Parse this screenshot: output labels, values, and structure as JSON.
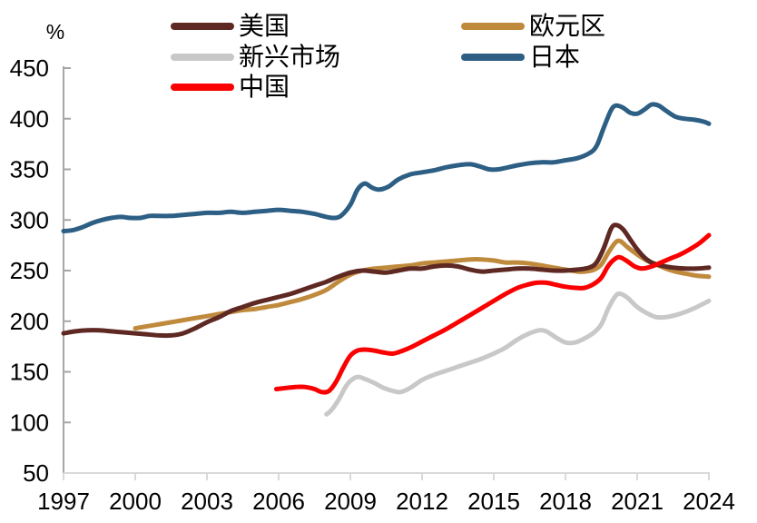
{
  "chart_data": {
    "type": "line",
    "title": "",
    "unit_label": "%",
    "xlabel": "",
    "ylabel": "%",
    "xlim": [
      1997,
      2024
    ],
    "ylim": [
      50,
      450
    ],
    "grid": false,
    "legend_position": "top",
    "x_ticks": [
      "1997",
      "2000",
      "2003",
      "2006",
      "2009",
      "2012",
      "2015",
      "2018",
      "2021",
      "2024"
    ],
    "y_ticks": [
      "450",
      "400",
      "350",
      "300",
      "250",
      "200",
      "150",
      "100",
      "50"
    ],
    "series": [
      {
        "id": "us",
        "name": "美国",
        "color": "#5E2823",
        "legend_col": 0,
        "legend_row": 0,
        "points": [
          [
            1997,
            188
          ],
          [
            1997.5,
            190
          ],
          [
            1998,
            191
          ],
          [
            1998.5,
            191
          ],
          [
            1999,
            190
          ],
          [
            1999.5,
            189
          ],
          [
            2000,
            188
          ],
          [
            2000.5,
            187
          ],
          [
            2001,
            186
          ],
          [
            2001.5,
            186
          ],
          [
            2002,
            188
          ],
          [
            2002.5,
            193
          ],
          [
            2003,
            199
          ],
          [
            2003.5,
            204
          ],
          [
            2004,
            210
          ],
          [
            2004.5,
            214
          ],
          [
            2005,
            218
          ],
          [
            2005.5,
            221
          ],
          [
            2006,
            224
          ],
          [
            2006.5,
            227
          ],
          [
            2007,
            231
          ],
          [
            2007.5,
            235
          ],
          [
            2008,
            239
          ],
          [
            2008.5,
            244
          ],
          [
            2009,
            248
          ],
          [
            2009.5,
            250
          ],
          [
            2010,
            249
          ],
          [
            2010.5,
            248
          ],
          [
            2011,
            250
          ],
          [
            2011.5,
            252
          ],
          [
            2012,
            252
          ],
          [
            2012.5,
            254
          ],
          [
            2013,
            255
          ],
          [
            2013.5,
            254
          ],
          [
            2014,
            251
          ],
          [
            2014.5,
            249
          ],
          [
            2015,
            250
          ],
          [
            2015.5,
            251
          ],
          [
            2016,
            252
          ],
          [
            2016.5,
            252
          ],
          [
            2017,
            251
          ],
          [
            2017.5,
            250
          ],
          [
            2018,
            250
          ],
          [
            2018.5,
            251
          ],
          [
            2019,
            253
          ],
          [
            2019.3,
            258
          ],
          [
            2019.6,
            272
          ],
          [
            2019.9,
            291
          ],
          [
            2020.1,
            295
          ],
          [
            2020.4,
            291
          ],
          [
            2020.7,
            281
          ],
          [
            2021,
            271
          ],
          [
            2021.3,
            263
          ],
          [
            2021.6,
            258
          ],
          [
            2022,
            255
          ],
          [
            2022.5,
            253
          ],
          [
            2023,
            252
          ],
          [
            2023.5,
            252
          ],
          [
            2024,
            253
          ]
        ]
      },
      {
        "id": "eurozone",
        "name": "欧元区",
        "color": "#C08A3D",
        "legend_col": 1,
        "legend_row": 0,
        "points": [
          [
            2000,
            193
          ],
          [
            2000.5,
            195
          ],
          [
            2001,
            197
          ],
          [
            2001.5,
            199
          ],
          [
            2002,
            201
          ],
          [
            2002.5,
            203
          ],
          [
            2003,
            205
          ],
          [
            2003.5,
            207
          ],
          [
            2004,
            209
          ],
          [
            2004.5,
            211
          ],
          [
            2005,
            212
          ],
          [
            2005.5,
            214
          ],
          [
            2006,
            216
          ],
          [
            2006.5,
            219
          ],
          [
            2007,
            222
          ],
          [
            2007.5,
            226
          ],
          [
            2008,
            231
          ],
          [
            2008.5,
            239
          ],
          [
            2009,
            246
          ],
          [
            2009.5,
            250
          ],
          [
            2010,
            252
          ],
          [
            2010.5,
            253
          ],
          [
            2011,
            254
          ],
          [
            2011.5,
            255
          ],
          [
            2012,
            257
          ],
          [
            2012.5,
            258
          ],
          [
            2013,
            259
          ],
          [
            2013.5,
            260
          ],
          [
            2014,
            261
          ],
          [
            2014.5,
            261
          ],
          [
            2015,
            260
          ],
          [
            2015.5,
            258
          ],
          [
            2016,
            258
          ],
          [
            2016.5,
            257
          ],
          [
            2017,
            255
          ],
          [
            2017.5,
            253
          ],
          [
            2018,
            251
          ],
          [
            2018.5,
            249
          ],
          [
            2018.8,
            249
          ],
          [
            2019.2,
            251
          ],
          [
            2019.5,
            256
          ],
          [
            2019.8,
            268
          ],
          [
            2020.1,
            278
          ],
          [
            2020.3,
            279
          ],
          [
            2020.6,
            273
          ],
          [
            2021,
            266
          ],
          [
            2021.4,
            260
          ],
          [
            2021.8,
            256
          ],
          [
            2022.2,
            252
          ],
          [
            2022.6,
            249
          ],
          [
            2023,
            247
          ],
          [
            2023.5,
            245
          ],
          [
            2024,
            244
          ]
        ]
      },
      {
        "id": "emerging",
        "name": "新兴市场",
        "color": "#C8C8C8",
        "legend_col": 0,
        "legend_row": 1,
        "points": [
          [
            2008,
            108
          ],
          [
            2008.2,
            112
          ],
          [
            2008.5,
            122
          ],
          [
            2008.8,
            135
          ],
          [
            2009,
            141
          ],
          [
            2009.3,
            145
          ],
          [
            2009.6,
            143
          ],
          [
            2010,
            139
          ],
          [
            2010.4,
            134
          ],
          [
            2010.8,
            131
          ],
          [
            2011.1,
            130
          ],
          [
            2011.5,
            134
          ],
          [
            2012,
            142
          ],
          [
            2012.5,
            147
          ],
          [
            2013,
            151
          ],
          [
            2013.5,
            155
          ],
          [
            2014,
            159
          ],
          [
            2014.5,
            163
          ],
          [
            2015,
            168
          ],
          [
            2015.5,
            174
          ],
          [
            2016,
            182
          ],
          [
            2016.5,
            188
          ],
          [
            2016.9,
            191
          ],
          [
            2017.2,
            190
          ],
          [
            2017.6,
            184
          ],
          [
            2018,
            179
          ],
          [
            2018.4,
            179
          ],
          [
            2018.8,
            183
          ],
          [
            2019.2,
            189
          ],
          [
            2019.5,
            197
          ],
          [
            2019.8,
            213
          ],
          [
            2020.1,
            225
          ],
          [
            2020.3,
            227
          ],
          [
            2020.6,
            223
          ],
          [
            2021,
            214
          ],
          [
            2021.4,
            208
          ],
          [
            2021.8,
            204
          ],
          [
            2022.2,
            204
          ],
          [
            2022.6,
            206
          ],
          [
            2023,
            209
          ],
          [
            2023.5,
            214
          ],
          [
            2024,
            220
          ]
        ]
      },
      {
        "id": "japan",
        "name": "日本",
        "color": "#2D5F85",
        "legend_col": 1,
        "legend_row": 1,
        "points": [
          [
            1997,
            289
          ],
          [
            1997.4,
            290
          ],
          [
            1997.8,
            293
          ],
          [
            1998.2,
            297
          ],
          [
            1998.6,
            300
          ],
          [
            1999,
            302
          ],
          [
            1999.4,
            303
          ],
          [
            1999.8,
            302
          ],
          [
            2000.2,
            302
          ],
          [
            2000.6,
            304
          ],
          [
            2001,
            304
          ],
          [
            2001.5,
            304
          ],
          [
            2002,
            305
          ],
          [
            2002.5,
            306
          ],
          [
            2003,
            307
          ],
          [
            2003.5,
            307
          ],
          [
            2004,
            308
          ],
          [
            2004.5,
            307
          ],
          [
            2005,
            308
          ],
          [
            2005.5,
            309
          ],
          [
            2006,
            310
          ],
          [
            2006.5,
            309
          ],
          [
            2007,
            308
          ],
          [
            2007.5,
            306
          ],
          [
            2008,
            303
          ],
          [
            2008.3,
            302
          ],
          [
            2008.6,
            304
          ],
          [
            2009,
            315
          ],
          [
            2009.3,
            330
          ],
          [
            2009.6,
            336
          ],
          [
            2009.9,
            332
          ],
          [
            2010.2,
            330
          ],
          [
            2010.6,
            333
          ],
          [
            2011,
            340
          ],
          [
            2011.5,
            345
          ],
          [
            2012,
            347
          ],
          [
            2012.5,
            349
          ],
          [
            2013,
            352
          ],
          [
            2013.5,
            354
          ],
          [
            2014,
            355
          ],
          [
            2014.4,
            353
          ],
          [
            2014.8,
            350
          ],
          [
            2015.2,
            350
          ],
          [
            2015.6,
            352
          ],
          [
            2016,
            354
          ],
          [
            2016.5,
            356
          ],
          [
            2017,
            357
          ],
          [
            2017.5,
            357
          ],
          [
            2018,
            359
          ],
          [
            2018.5,
            361
          ],
          [
            2019,
            366
          ],
          [
            2019.3,
            373
          ],
          [
            2019.6,
            391
          ],
          [
            2019.9,
            408
          ],
          [
            2020.1,
            413
          ],
          [
            2020.4,
            411
          ],
          [
            2020.7,
            406
          ],
          [
            2021,
            405
          ],
          [
            2021.3,
            409
          ],
          [
            2021.6,
            414
          ],
          [
            2021.9,
            413
          ],
          [
            2022.2,
            408
          ],
          [
            2022.6,
            402
          ],
          [
            2023,
            400
          ],
          [
            2023.4,
            399
          ],
          [
            2023.8,
            397
          ],
          [
            2024,
            395
          ]
        ]
      },
      {
        "id": "china",
        "name": "中国",
        "color": "#FA0000",
        "legend_col": 0,
        "legend_row": 2,
        "points": [
          [
            2005.9,
            133
          ],
          [
            2006.3,
            134
          ],
          [
            2006.7,
            135
          ],
          [
            2007.1,
            135
          ],
          [
            2007.5,
            133
          ],
          [
            2007.8,
            130
          ],
          [
            2008.1,
            131
          ],
          [
            2008.4,
            140
          ],
          [
            2008.7,
            154
          ],
          [
            2009,
            166
          ],
          [
            2009.3,
            171
          ],
          [
            2009.6,
            172
          ],
          [
            2010,
            171
          ],
          [
            2010.4,
            169
          ],
          [
            2010.8,
            168
          ],
          [
            2011.2,
            171
          ],
          [
            2011.6,
            175
          ],
          [
            2012,
            180
          ],
          [
            2012.5,
            186
          ],
          [
            2013,
            192
          ],
          [
            2013.5,
            199
          ],
          [
            2014,
            206
          ],
          [
            2014.5,
            213
          ],
          [
            2015,
            220
          ],
          [
            2015.5,
            227
          ],
          [
            2016,
            233
          ],
          [
            2016.4,
            236
          ],
          [
            2016.8,
            238
          ],
          [
            2017.2,
            238
          ],
          [
            2017.6,
            236
          ],
          [
            2018,
            234
          ],
          [
            2018.4,
            233
          ],
          [
            2018.8,
            233
          ],
          [
            2019.2,
            237
          ],
          [
            2019.5,
            243
          ],
          [
            2019.8,
            255
          ],
          [
            2020.1,
            262
          ],
          [
            2020.3,
            263
          ],
          [
            2020.6,
            259
          ],
          [
            2020.9,
            254
          ],
          [
            2021.2,
            252
          ],
          [
            2021.6,
            254
          ],
          [
            2022,
            258
          ],
          [
            2022.4,
            262
          ],
          [
            2022.8,
            266
          ],
          [
            2023.2,
            271
          ],
          [
            2023.6,
            277
          ],
          [
            2024,
            285
          ]
        ]
      }
    ],
    "draw_order": [
      "emerging",
      "eurozone",
      "us",
      "japan",
      "china"
    ]
  },
  "axes": {
    "left_axis_color": "#A6A6A6",
    "bottom_axis_color": "#D9D9D9",
    "text_color": "#000000"
  }
}
